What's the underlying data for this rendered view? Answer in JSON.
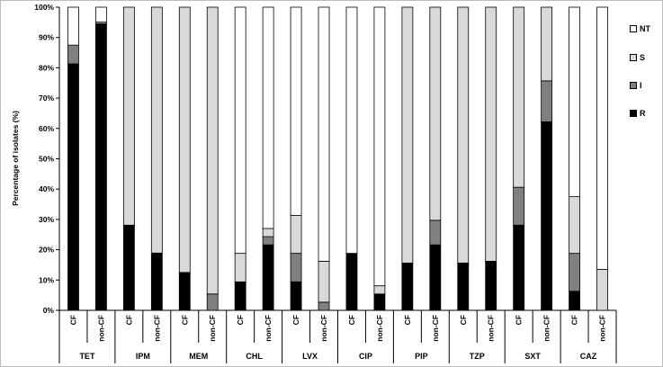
{
  "chart_data": {
    "type": "bar",
    "stacked": true,
    "ylabel": "Percentage of isolates (%)",
    "ylim": [
      0,
      100
    ],
    "yticks": [
      "0%",
      "10%",
      "20%",
      "30%",
      "40%",
      "50%",
      "60%",
      "70%",
      "80%",
      "90%",
      "100%"
    ],
    "groups": [
      "TET",
      "IPM",
      "MEM",
      "CHL",
      "LVX",
      "CIP",
      "PIP",
      "TZP",
      "SXT",
      "CAZ"
    ],
    "subcategories": [
      "CF",
      "non-CF"
    ],
    "categories": [
      "TET CF",
      "TET non-CF",
      "IPM CF",
      "IPM non-CF",
      "MEM CF",
      "MEM non-CF",
      "CHL CF",
      "CHL non-CF",
      "LVX CF",
      "LVX non-CF",
      "CIP CF",
      "CIP non-CF",
      "PIP CF",
      "PIP non-CF",
      "TZP CF",
      "TZP non-CF",
      "SXT CF",
      "SXT non-CF",
      "CAZ CF",
      "CAZ non-CF"
    ],
    "series": [
      {
        "name": "R",
        "color": "#000000",
        "values": [
          81.3,
          94.6,
          28.1,
          18.9,
          12.5,
          0,
          9.4,
          21.6,
          9.4,
          0,
          18.8,
          5.4,
          15.6,
          21.6,
          15.6,
          16.2,
          28.1,
          62.2,
          6.3,
          0
        ]
      },
      {
        "name": "I",
        "color": "#808080",
        "values": [
          6.2,
          0,
          0,
          0,
          0,
          5.4,
          0,
          2.7,
          9.4,
          2.7,
          0,
          0,
          0,
          8.1,
          0,
          0,
          12.5,
          13.5,
          12.5,
          0
        ]
      },
      {
        "name": "S",
        "color": "#d9d9d9",
        "values": [
          0,
          0.5,
          71.9,
          81.1,
          87.5,
          94.6,
          9.4,
          2.7,
          12.5,
          13.5,
          0,
          2.7,
          84.4,
          70.3,
          84.4,
          83.8,
          59.4,
          24.3,
          18.7,
          13.5
        ]
      },
      {
        "name": "NT",
        "color": "#ffffff",
        "values": [
          12.5,
          4.9,
          0,
          0,
          0,
          0,
          81.2,
          73.0,
          68.7,
          83.8,
          81.2,
          91.9,
          0,
          0,
          0,
          0,
          0,
          0,
          62.5,
          86.5
        ]
      }
    ],
    "legend": {
      "position": "right",
      "order": [
        "NT",
        "S",
        "I",
        "R"
      ]
    },
    "grid": false
  }
}
